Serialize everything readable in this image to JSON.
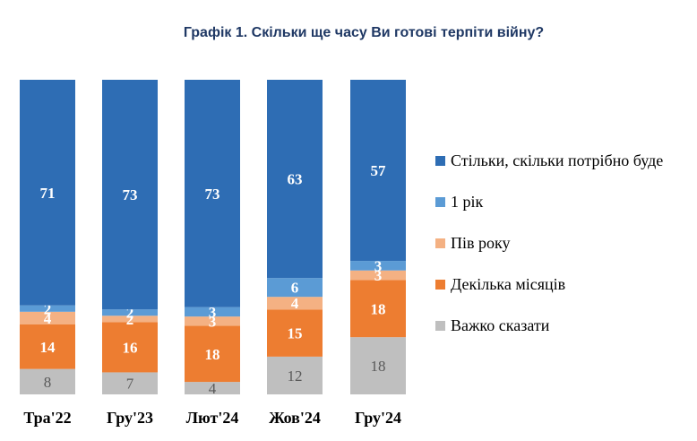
{
  "chart_data": {
    "type": "bar",
    "stacked": true,
    "title": "Графік 1. Скільки ще часу Ви готові терпіти війну?",
    "categories": [
      "Тра'22",
      "Гру'23",
      "Лют'24",
      "Жов'24",
      "Гру'24"
    ],
    "series": [
      {
        "name": "Стільки, скільки потрібно буде",
        "color": "#2e6db4",
        "values": [
          71,
          73,
          73,
          63,
          57
        ]
      },
      {
        "name": "1 рік",
        "color": "#5b9bd5",
        "values": [
          2,
          2,
          3,
          6,
          3
        ]
      },
      {
        "name": "Пів року",
        "color": "#f4b183",
        "values": [
          4,
          2,
          3,
          4,
          3
        ]
      },
      {
        "name": "Декілька місяців",
        "color": "#ed7d31",
        "values": [
          14,
          16,
          18,
          15,
          18
        ]
      },
      {
        "name": "Важко сказати",
        "color": "#bfbfbf",
        "values": [
          8,
          7,
          4,
          12,
          18
        ]
      }
    ],
    "legend_position": "right",
    "grid": false
  }
}
